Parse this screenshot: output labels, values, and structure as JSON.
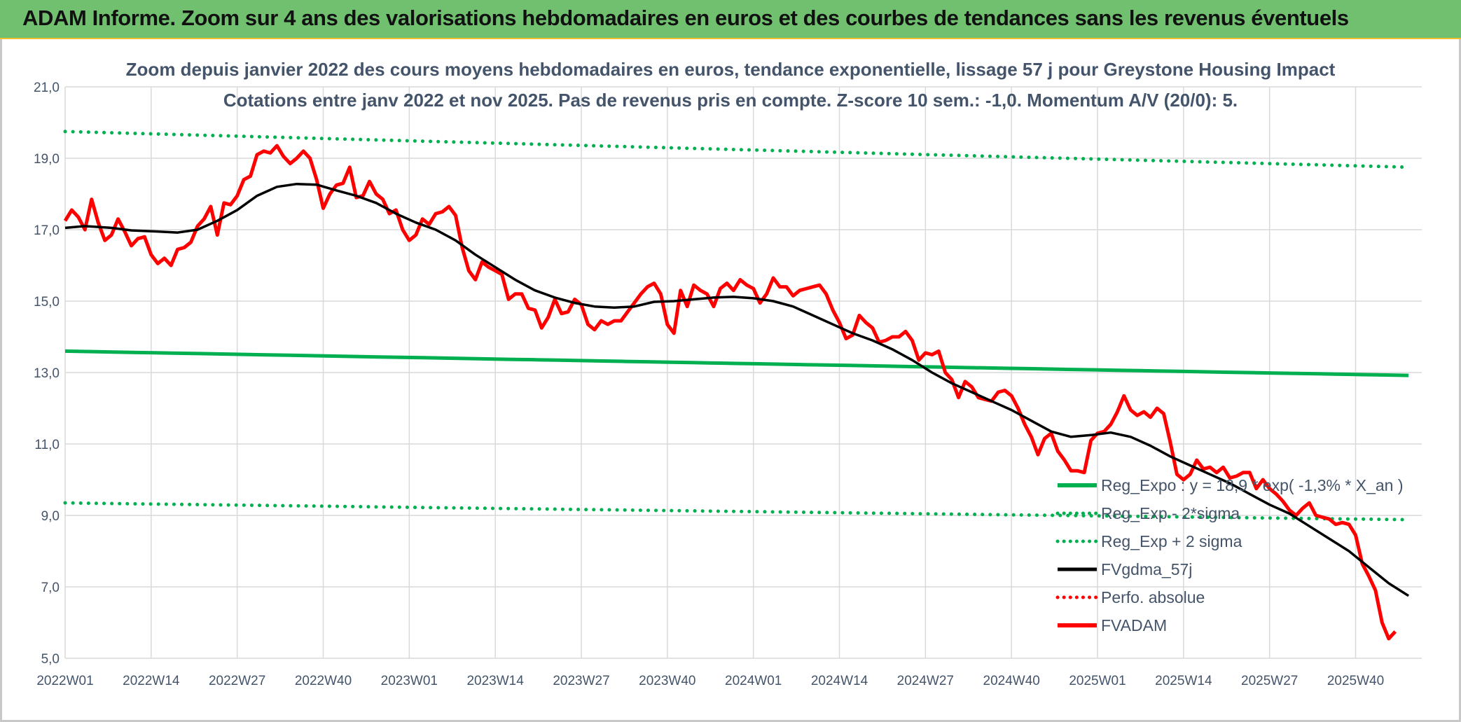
{
  "header": {
    "title": "ADAM Informe. Zoom sur 4 ans des valorisations hebdomadaires en euros et des courbes de tendances sans les revenus éventuels"
  },
  "colors": {
    "header_bg": "#70c070",
    "regression": "#00b050",
    "moving_average": "#000000",
    "price": "#ff0000",
    "grid": "#d9d9d9",
    "text": "#44546a"
  },
  "chart_data": {
    "type": "line",
    "title": "Zoom depuis janvier 2022 des cours moyens hebdomadaires en euros, tendance exponentielle, lissage 57 j pour Greystone Housing Impact",
    "subtitle": "Cotations entre janv 2022 et nov 2025. Pas de revenus pris en compte. Z-score 10 sem.: -1,0. Momentum A/V (20/0): 5.",
    "xlabel": "",
    "ylabel": "",
    "ylim": [
      5,
      21
    ],
    "yticks": [
      "5,0",
      "7,0",
      "9,0",
      "11,0",
      "13,0",
      "15,0",
      "17,0",
      "19,0",
      "21,0"
    ],
    "xticks": [
      "2022W01",
      "2022W14",
      "2022W27",
      "2022W40",
      "2023W01",
      "2023W14",
      "2023W27",
      "2023W40",
      "2024W01",
      "2024W14",
      "2024W27",
      "2024W40",
      "2025W01",
      "2025W14",
      "2025W27",
      "2025W40"
    ],
    "x_range_weeks": [
      0,
      205
    ],
    "grid": true,
    "legend_placement": "bottom-right",
    "series": [
      {
        "name": "Reg_Expo : y = 18,9 * exp( -1,3% *  X_an )",
        "style": "solid",
        "color": "#00b050",
        "start": 13.6,
        "end": 12.92
      },
      {
        "name": "Reg_Exp - 2*sigma",
        "style": "dotted",
        "color": "#00b050",
        "start": 9.35,
        "end": 8.88
      },
      {
        "name": "Reg_Exp + 2 sigma",
        "style": "dotted",
        "color": "#00b050",
        "start": 19.75,
        "end": 18.75
      },
      {
        "name": "FVgdma_57j",
        "style": "solid",
        "color": "#000000",
        "points": [
          [
            0,
            17.05
          ],
          [
            3,
            17.1
          ],
          [
            7,
            17.05
          ],
          [
            10,
            16.98
          ],
          [
            14,
            16.95
          ],
          [
            17,
            16.92
          ],
          [
            20,
            17.0
          ],
          [
            23,
            17.25
          ],
          [
            26,
            17.55
          ],
          [
            29,
            17.95
          ],
          [
            32,
            18.2
          ],
          [
            35,
            18.28
          ],
          [
            38,
            18.26
          ],
          [
            41,
            18.1
          ],
          [
            44,
            17.95
          ],
          [
            47,
            17.75
          ],
          [
            50,
            17.45
          ],
          [
            53,
            17.2
          ],
          [
            56,
            17.0
          ],
          [
            59,
            16.7
          ],
          [
            62,
            16.3
          ],
          [
            65,
            15.95
          ],
          [
            68,
            15.6
          ],
          [
            71,
            15.3
          ],
          [
            74,
            15.1
          ],
          [
            77,
            14.95
          ],
          [
            80,
            14.85
          ],
          [
            83,
            14.82
          ],
          [
            86,
            14.85
          ],
          [
            89,
            14.98
          ],
          [
            92,
            15.0
          ],
          [
            95,
            15.05
          ],
          [
            98,
            15.1
          ],
          [
            101,
            15.12
          ],
          [
            104,
            15.08
          ],
          [
            107,
            15.0
          ],
          [
            110,
            14.85
          ],
          [
            113,
            14.6
          ],
          [
            116,
            14.35
          ],
          [
            119,
            14.1
          ],
          [
            122,
            13.9
          ],
          [
            125,
            13.65
          ],
          [
            128,
            13.35
          ],
          [
            131,
            13.0
          ],
          [
            134,
            12.7
          ],
          [
            137,
            12.45
          ],
          [
            140,
            12.2
          ],
          [
            143,
            11.95
          ],
          [
            146,
            11.65
          ],
          [
            149,
            11.35
          ],
          [
            152,
            11.2
          ],
          [
            155,
            11.25
          ],
          [
            158,
            11.32
          ],
          [
            161,
            11.2
          ],
          [
            164,
            10.95
          ],
          [
            167,
            10.65
          ],
          [
            170,
            10.4
          ],
          [
            173,
            10.15
          ],
          [
            176,
            9.9
          ],
          [
            179,
            9.6
          ],
          [
            182,
            9.3
          ],
          [
            185,
            9.05
          ],
          [
            188,
            8.7
          ],
          [
            191,
            8.35
          ],
          [
            194,
            8.0
          ],
          [
            197,
            7.55
          ],
          [
            200,
            7.1
          ],
          [
            203,
            6.75
          ]
        ]
      },
      {
        "name": "Perfo. absolue",
        "style": "dotted",
        "color": "#ff0000",
        "points": []
      },
      {
        "name": "FVADAM",
        "style": "solid",
        "color": "#ff0000",
        "points": [
          [
            0,
            17.25
          ],
          [
            1,
            17.55
          ],
          [
            2,
            17.35
          ],
          [
            3,
            17.0
          ],
          [
            4,
            17.85
          ],
          [
            5,
            17.2
          ],
          [
            6,
            16.7
          ],
          [
            7,
            16.85
          ],
          [
            8,
            17.3
          ],
          [
            9,
            16.95
          ],
          [
            10,
            16.55
          ],
          [
            11,
            16.75
          ],
          [
            12,
            16.8
          ],
          [
            13,
            16.3
          ],
          [
            14,
            16.05
          ],
          [
            15,
            16.2
          ],
          [
            16,
            16.0
          ],
          [
            17,
            16.45
          ],
          [
            18,
            16.5
          ],
          [
            19,
            16.65
          ],
          [
            20,
            17.1
          ],
          [
            21,
            17.3
          ],
          [
            22,
            17.65
          ],
          [
            23,
            16.85
          ],
          [
            24,
            17.75
          ],
          [
            25,
            17.7
          ],
          [
            26,
            17.95
          ],
          [
            27,
            18.4
          ],
          [
            28,
            18.5
          ],
          [
            29,
            19.1
          ],
          [
            30,
            19.2
          ],
          [
            31,
            19.15
          ],
          [
            32,
            19.35
          ],
          [
            33,
            19.05
          ],
          [
            34,
            18.85
          ],
          [
            35,
            19.0
          ],
          [
            36,
            19.2
          ],
          [
            37,
            19.0
          ],
          [
            38,
            18.4
          ],
          [
            39,
            17.6
          ],
          [
            40,
            18.0
          ],
          [
            41,
            18.25
          ],
          [
            42,
            18.3
          ],
          [
            43,
            18.75
          ],
          [
            44,
            17.9
          ],
          [
            45,
            17.95
          ],
          [
            46,
            18.35
          ],
          [
            47,
            18.0
          ],
          [
            48,
            17.85
          ],
          [
            49,
            17.45
          ],
          [
            50,
            17.55
          ],
          [
            51,
            17.0
          ],
          [
            52,
            16.7
          ],
          [
            53,
            16.85
          ],
          [
            54,
            17.3
          ],
          [
            55,
            17.15
          ],
          [
            56,
            17.45
          ],
          [
            57,
            17.5
          ],
          [
            58,
            17.65
          ],
          [
            59,
            17.4
          ],
          [
            60,
            16.5
          ],
          [
            61,
            15.85
          ],
          [
            62,
            15.6
          ],
          [
            63,
            16.1
          ],
          [
            64,
            15.95
          ],
          [
            65,
            15.85
          ],
          [
            66,
            15.75
          ],
          [
            67,
            15.05
          ],
          [
            68,
            15.2
          ],
          [
            69,
            15.2
          ],
          [
            70,
            14.8
          ],
          [
            71,
            14.75
          ],
          [
            72,
            14.25
          ],
          [
            73,
            14.55
          ],
          [
            74,
            15.05
          ],
          [
            75,
            14.65
          ],
          [
            76,
            14.7
          ],
          [
            77,
            15.05
          ],
          [
            78,
            14.9
          ],
          [
            79,
            14.35
          ],
          [
            80,
            14.2
          ],
          [
            81,
            14.45
          ],
          [
            82,
            14.35
          ],
          [
            83,
            14.45
          ],
          [
            84,
            14.45
          ],
          [
            85,
            14.7
          ],
          [
            86,
            14.95
          ],
          [
            87,
            15.2
          ],
          [
            88,
            15.4
          ],
          [
            89,
            15.5
          ],
          [
            90,
            15.2
          ],
          [
            91,
            14.35
          ],
          [
            92,
            14.1
          ],
          [
            93,
            15.3
          ],
          [
            94,
            14.85
          ],
          [
            95,
            15.45
          ],
          [
            96,
            15.3
          ],
          [
            97,
            15.2
          ],
          [
            98,
            14.85
          ],
          [
            99,
            15.35
          ],
          [
            100,
            15.5
          ],
          [
            101,
            15.3
          ],
          [
            102,
            15.6
          ],
          [
            103,
            15.45
          ],
          [
            104,
            15.35
          ],
          [
            105,
            14.95
          ],
          [
            106,
            15.2
          ],
          [
            107,
            15.65
          ],
          [
            108,
            15.4
          ],
          [
            109,
            15.4
          ],
          [
            110,
            15.15
          ],
          [
            111,
            15.3
          ],
          [
            112,
            15.35
          ],
          [
            113,
            15.4
          ],
          [
            114,
            15.45
          ],
          [
            115,
            15.2
          ],
          [
            116,
            14.75
          ],
          [
            117,
            14.4
          ],
          [
            118,
            13.95
          ],
          [
            119,
            14.05
          ],
          [
            120,
            14.6
          ],
          [
            121,
            14.4
          ],
          [
            122,
            14.25
          ],
          [
            123,
            13.85
          ],
          [
            124,
            13.9
          ],
          [
            125,
            14.0
          ],
          [
            126,
            14.0
          ],
          [
            127,
            14.15
          ],
          [
            128,
            13.9
          ],
          [
            129,
            13.35
          ],
          [
            130,
            13.55
          ],
          [
            131,
            13.5
          ],
          [
            132,
            13.6
          ],
          [
            133,
            13.0
          ],
          [
            134,
            12.8
          ],
          [
            135,
            12.3
          ],
          [
            136,
            12.75
          ],
          [
            137,
            12.6
          ],
          [
            138,
            12.3
          ],
          [
            139,
            12.25
          ],
          [
            140,
            12.2
          ],
          [
            141,
            12.45
          ],
          [
            142,
            12.5
          ],
          [
            143,
            12.35
          ],
          [
            144,
            12.0
          ],
          [
            145,
            11.55
          ],
          [
            146,
            11.2
          ],
          [
            147,
            10.7
          ],
          [
            148,
            11.15
          ],
          [
            149,
            11.3
          ],
          [
            150,
            10.8
          ],
          [
            151,
            10.55
          ],
          [
            152,
            10.25
          ],
          [
            153,
            10.25
          ],
          [
            154,
            10.2
          ],
          [
            155,
            11.1
          ],
          [
            156,
            11.3
          ],
          [
            157,
            11.35
          ],
          [
            158,
            11.55
          ],
          [
            159,
            11.9
          ],
          [
            160,
            12.35
          ],
          [
            161,
            11.95
          ],
          [
            162,
            11.8
          ],
          [
            163,
            11.9
          ],
          [
            164,
            11.75
          ],
          [
            165,
            12.0
          ],
          [
            166,
            11.85
          ],
          [
            167,
            11.05
          ],
          [
            168,
            10.15
          ],
          [
            169,
            10.0
          ],
          [
            170,
            10.15
          ],
          [
            171,
            10.55
          ],
          [
            172,
            10.3
          ],
          [
            173,
            10.35
          ],
          [
            174,
            10.2
          ],
          [
            175,
            10.35
          ],
          [
            176,
            10.05
          ],
          [
            177,
            10.1
          ],
          [
            178,
            10.2
          ],
          [
            179,
            10.2
          ],
          [
            180,
            9.75
          ],
          [
            181,
            10.0
          ],
          [
            182,
            9.75
          ],
          [
            183,
            9.6
          ],
          [
            184,
            9.4
          ],
          [
            185,
            9.15
          ],
          [
            186,
            9.0
          ],
          [
            187,
            9.2
          ],
          [
            188,
            9.35
          ],
          [
            189,
            9.0
          ],
          [
            190,
            8.95
          ],
          [
            191,
            8.9
          ],
          [
            192,
            8.75
          ],
          [
            193,
            8.8
          ],
          [
            194,
            8.75
          ],
          [
            195,
            8.45
          ],
          [
            196,
            7.65
          ],
          [
            197,
            7.3
          ],
          [
            198,
            6.9
          ],
          [
            199,
            6.0
          ],
          [
            200,
            5.55
          ],
          [
            201,
            5.75
          ]
        ]
      }
    ]
  }
}
